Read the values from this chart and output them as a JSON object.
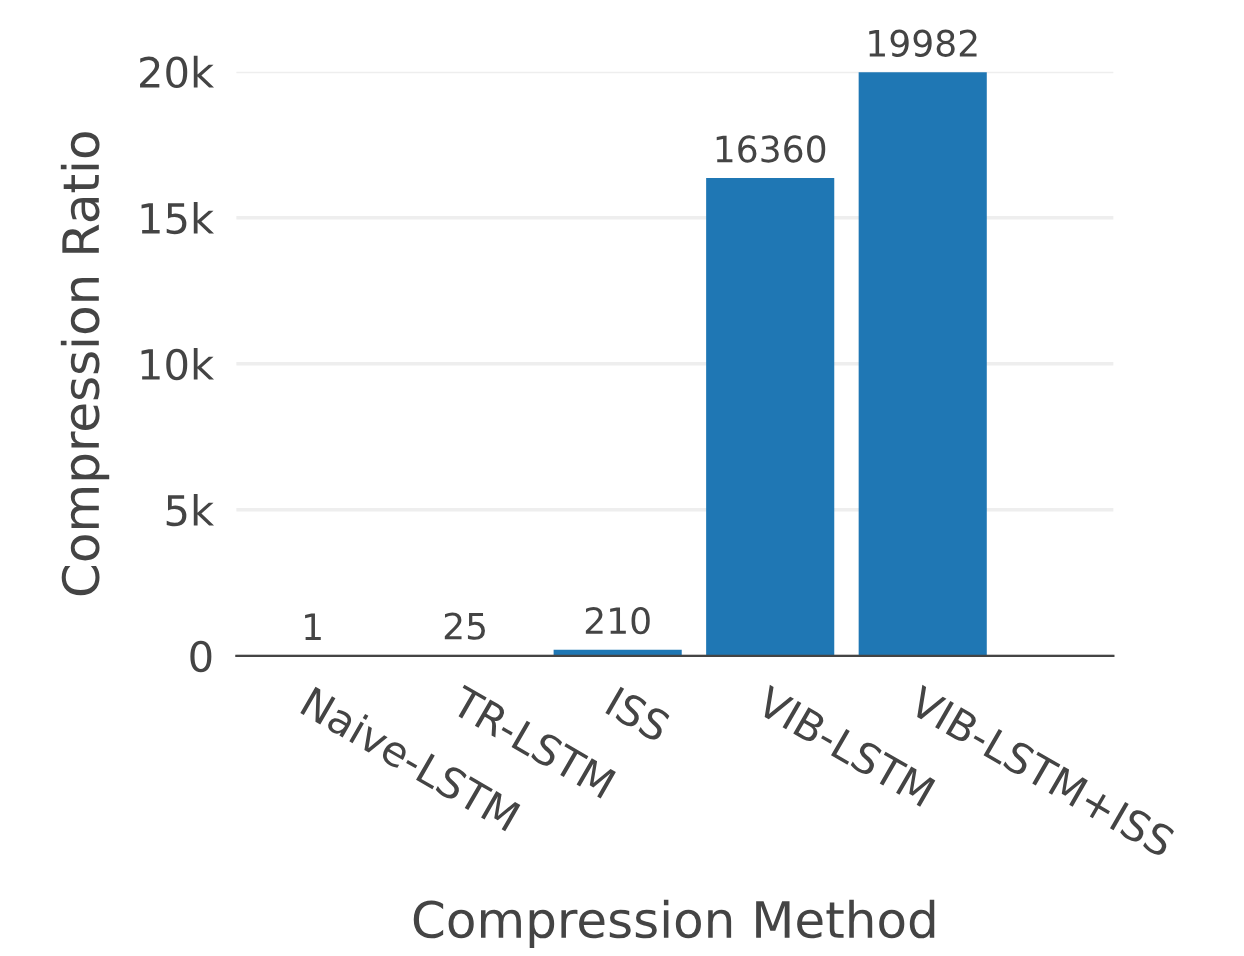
{
  "chart_data": {
    "type": "bar",
    "xlabel": "Compression Method",
    "ylabel": "Compression Ratio",
    "categories": [
      "Naive-LSTM",
      "TR-LSTM",
      "ISS",
      "VIB-LSTM",
      "VIB-LSTM+ISS"
    ],
    "values": [
      1,
      25,
      210,
      16360,
      19982
    ],
    "color": "#1f77b4",
    "ylim": [
      0,
      20000
    ],
    "yticks": [
      0,
      {
        "value": 5000,
        "label": "5k"
      },
      {
        "value": 10000,
        "label": "10k"
      },
      {
        "value": 15000,
        "label": "15k"
      },
      {
        "value": 20000,
        "label": "20k"
      }
    ],
    "grid": "y",
    "data_labels": true
  }
}
